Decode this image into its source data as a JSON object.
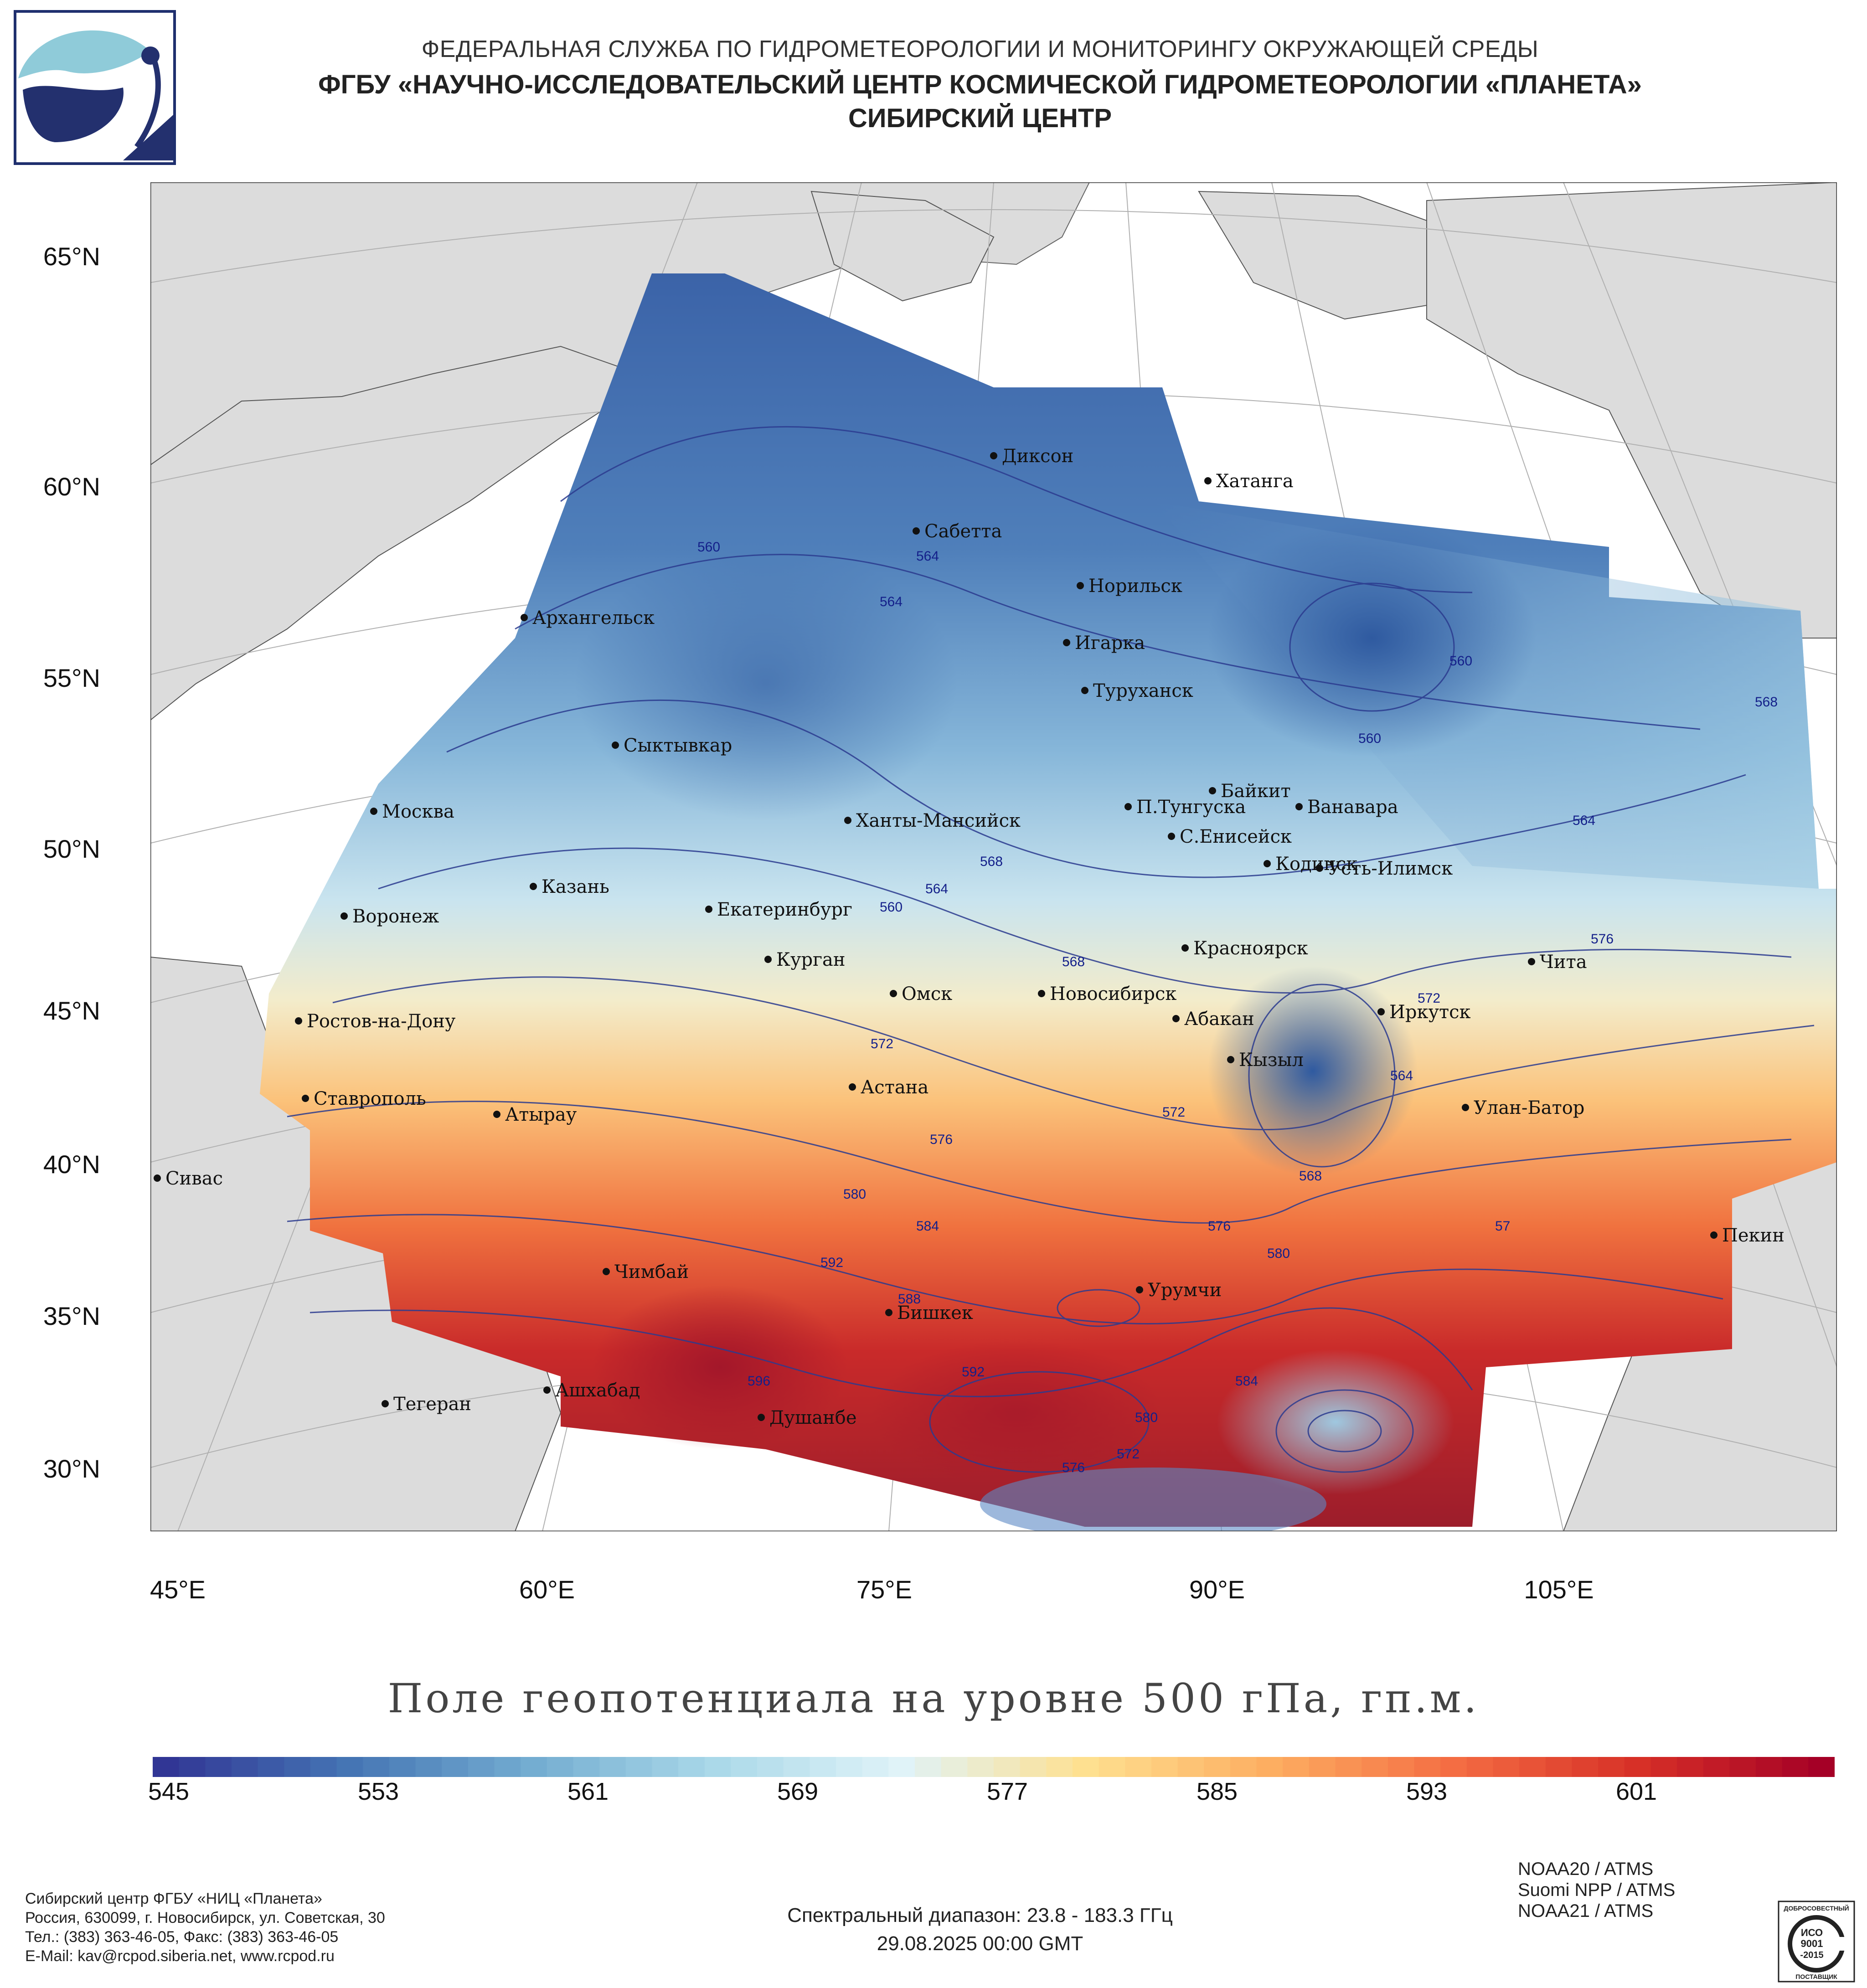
{
  "header": {
    "line1": "ФЕДЕРАЛЬНАЯ СЛУЖБА ПО ГИДРОМЕТЕОРОЛОГИИ И МОНИТОРИНГУ ОКРУЖАЮЩЕЙ СРЕДЫ",
    "line2": "ФГБУ «НАУЧНО-ИССЛЕДОВАТЕЛЬСКИЙ ЦЕНТР КОСМИЧЕСКОЙ ГИДРОМЕТЕОРОЛОГИИ «ПЛАНЕТА»",
    "line3": "СИБИРСКИЙ ЦЕНТР"
  },
  "map": {
    "lat_labels": [
      "65°N",
      "60°N",
      "55°N",
      "50°N",
      "45°N",
      "40°N",
      "35°N",
      "30°N"
    ],
    "lon_labels": [
      "45°E",
      "60°E",
      "75°E",
      "90°E",
      "105°E"
    ],
    "cities": [
      "Диксон",
      "Хатанга",
      "Сабетта",
      "Норильск",
      "Архангельск",
      "Игарка",
      "Туруханск",
      "Сыктывкар",
      "Байкит",
      "Москва",
      "П.Тунгуска",
      "Ванавара",
      "Ханты-Мансийск",
      "С.Енисейск",
      "Кодинск",
      "Усть-Илимск",
      "Казань",
      "Екатеринбург",
      "Воронеж",
      "Красноярск",
      "Курган",
      "Чита",
      "Омск",
      "Новосибирск",
      "Ростов-на-Дону",
      "Абакан",
      "Иркутск",
      "Кызыл",
      "Ставрополь",
      "Астана",
      "Улан-Батор",
      "Атырау",
      "Сивас",
      "Пекин",
      "Чимбай",
      "Урумчи",
      "Бишкек",
      "Тегеран",
      "Ашхабад",
      "Душанбе"
    ],
    "contour_labels": [
      "560",
      "564",
      "564",
      "560",
      "560",
      "568",
      "564",
      "568",
      "560",
      "564",
      "568",
      "576",
      "572",
      "572",
      "572",
      "564",
      "576",
      "568",
      "580",
      "584",
      "576",
      "57",
      "592",
      "588",
      "580",
      "596",
      "592",
      "584",
      "580",
      "572",
      "576"
    ]
  },
  "title": "Поле геопотенциала на уровне 500 гПа, гп.м.",
  "colorbar": {
    "ticks": [
      "545",
      "553",
      "561",
      "569",
      "577",
      "585",
      "593",
      "601"
    ],
    "min": 545,
    "max": 609,
    "colors": [
      "#313695",
      "#4575b4",
      "#74add1",
      "#abd9e9",
      "#e0f3f8",
      "#fee090",
      "#fdae61",
      "#f46d43",
      "#d73027",
      "#a50026"
    ]
  },
  "footer": {
    "org": "Сибирский центр ФГБУ «НИЦ «Планета»",
    "address": "Россия, 630099, г. Новосибирск, ул. Советская, 30",
    "phone": "Тел.: (383) 363-46-05, Факс: (383) 363-46-05",
    "email": "E-Mail: kav@rcpod.siberia.net, www.rcpod.ru",
    "spectral": "Спектральный диапазон: 23.8 - 183.3 ГГц",
    "datetime": "29.08.2025 00:00 GMT",
    "satellites": [
      "NOAA20 / ATMS",
      "Suomi NPP / ATMS",
      "NOAA21 / ATMS"
    ],
    "cert_top": "ДОБРОСОВЕСТНЫЙ",
    "cert_mid1": "ИСО",
    "cert_mid2": "9001",
    "cert_mid3": "-2015",
    "cert_bottom": "ПОСТАВЩИК"
  }
}
